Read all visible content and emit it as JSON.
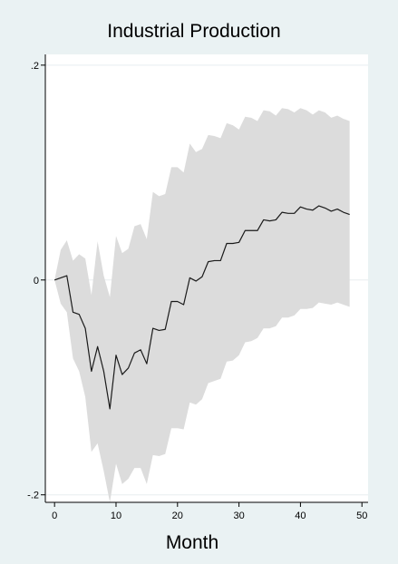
{
  "chart_data": {
    "type": "line",
    "title": "Industrial Production",
    "xlabel": "Month",
    "ylabel": "",
    "xlim": [
      -1.5,
      51
    ],
    "ylim": [
      -0.207,
      0.21
    ],
    "x_ticks": [
      0,
      10,
      20,
      30,
      40,
      50
    ],
    "x_tick_labels": [
      "0",
      "10",
      "20",
      "30",
      "40",
      "50"
    ],
    "y_ticks": [
      -0.2,
      0,
      0.2
    ],
    "y_tick_labels": [
      "-.2",
      "0",
      ".2"
    ],
    "grid": true,
    "legend": "none",
    "colors": {
      "background": "#eaf2f3",
      "plot_area": "#ffffff",
      "band": "#dcdcdc",
      "line": "#1a1a1a",
      "grid": "#e8eef0"
    },
    "x": [
      0,
      1,
      2,
      3,
      4,
      5,
      6,
      7,
      8,
      9,
      10,
      11,
      12,
      13,
      14,
      15,
      16,
      17,
      18,
      19,
      20,
      21,
      22,
      23,
      24,
      25,
      26,
      27,
      28,
      29,
      30,
      31,
      32,
      33,
      34,
      35,
      36,
      37,
      38,
      39,
      40,
      41,
      42,
      43,
      44,
      45,
      46,
      47,
      48
    ],
    "series": [
      {
        "role": "point-estimate",
        "values": [
          0,
          0.002,
          0.004,
          -0.03,
          -0.032,
          -0.045,
          -0.085,
          -0.062,
          -0.085,
          -0.12,
          -0.07,
          -0.088,
          -0.082,
          -0.068,
          -0.065,
          -0.078,
          -0.045,
          -0.047,
          -0.046,
          -0.02,
          -0.02,
          -0.023,
          0.002,
          -0.001,
          0.003,
          0.017,
          0.018,
          0.018,
          0.034,
          0.034,
          0.035,
          0.046,
          0.046,
          0.046,
          0.056,
          0.055,
          0.056,
          0.063,
          0.062,
          0.062,
          0.068,
          0.066,
          0.065,
          0.069,
          0.067,
          0.064,
          0.066,
          0.063,
          0.061
        ]
      },
      {
        "role": "upper-bound",
        "values": [
          0,
          0.028,
          0.037,
          0.018,
          0.024,
          0.02,
          -0.014,
          0.036,
          0.004,
          -0.016,
          0.041,
          0.025,
          0.029,
          0.05,
          0.052,
          0.038,
          0.082,
          0.078,
          0.08,
          0.105,
          0.105,
          0.1,
          0.127,
          0.119,
          0.122,
          0.135,
          0.134,
          0.132,
          0.146,
          0.144,
          0.14,
          0.152,
          0.151,
          0.148,
          0.158,
          0.157,
          0.153,
          0.16,
          0.159,
          0.156,
          0.16,
          0.158,
          0.154,
          0.158,
          0.156,
          0.151,
          0.153,
          0.15,
          0.148
        ]
      },
      {
        "role": "lower-bound",
        "values": [
          0,
          -0.022,
          -0.03,
          -0.073,
          -0.085,
          -0.109,
          -0.16,
          -0.152,
          -0.178,
          -0.207,
          -0.171,
          -0.19,
          -0.185,
          -0.175,
          -0.175,
          -0.19,
          -0.163,
          -0.164,
          -0.162,
          -0.138,
          -0.138,
          -0.139,
          -0.114,
          -0.116,
          -0.111,
          -0.096,
          -0.094,
          -0.092,
          -0.076,
          -0.075,
          -0.07,
          -0.058,
          -0.057,
          -0.054,
          -0.045,
          -0.045,
          -0.043,
          -0.035,
          -0.035,
          -0.033,
          -0.027,
          -0.027,
          -0.026,
          -0.021,
          -0.022,
          -0.023,
          -0.021,
          -0.023,
          -0.025
        ]
      }
    ]
  }
}
